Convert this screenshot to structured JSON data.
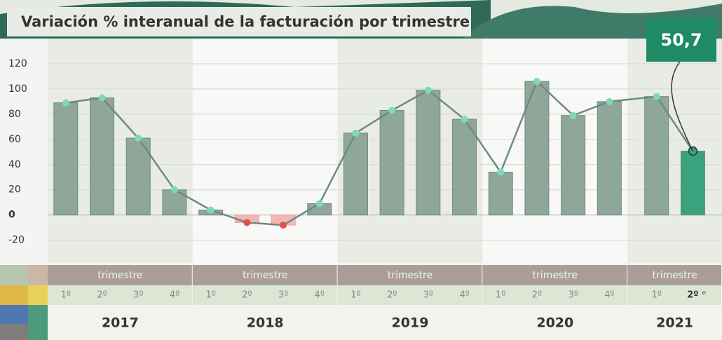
{
  "chart_data": {
    "type": "bar",
    "title": "Variación % interanual de la facturación por trimestre",
    "categories": [
      "1º",
      "2º",
      "3º",
      "4º",
      "1º",
      "2º",
      "3º",
      "4º",
      "1º",
      "2º",
      "3º",
      "4º",
      "1º",
      "2º",
      "3º",
      "4º",
      "1º",
      "2º"
    ],
    "groups": [
      {
        "label": "2017",
        "sublabel": "trimestre",
        "count": 4
      },
      {
        "label": "2018",
        "sublabel": "trimestre",
        "count": 4
      },
      {
        "label": "2019",
        "sublabel": "trimestre",
        "count": 4
      },
      {
        "label": "2020",
        "sublabel": "trimestre",
        "count": 4
      },
      {
        "label": "2021",
        "sublabel": "trimestre",
        "count": 2
      }
    ],
    "values": [
      89,
      93,
      61,
      20,
      4,
      -6,
      -8,
      9,
      65,
      83,
      99,
      76,
      34,
      106,
      79,
      90,
      94,
      50.7
    ],
    "value_labels": [
      null,
      null,
      null,
      null,
      null,
      null,
      null,
      null,
      null,
      null,
      null,
      null,
      null,
      null,
      null,
      null,
      null,
      "50,7"
    ],
    "estimate_note": "e",
    "color": "#8fa79b",
    "negative_color": "#f2b8b8",
    "highlight_color": "#3aa37d",
    "line_color": "#6f8a80",
    "point_color": "#7fd9b9",
    "ylim": [
      -38,
      140
    ],
    "yticks": [
      -20,
      0,
      20,
      40,
      60,
      80,
      100,
      120
    ],
    "grid": true
  }
}
